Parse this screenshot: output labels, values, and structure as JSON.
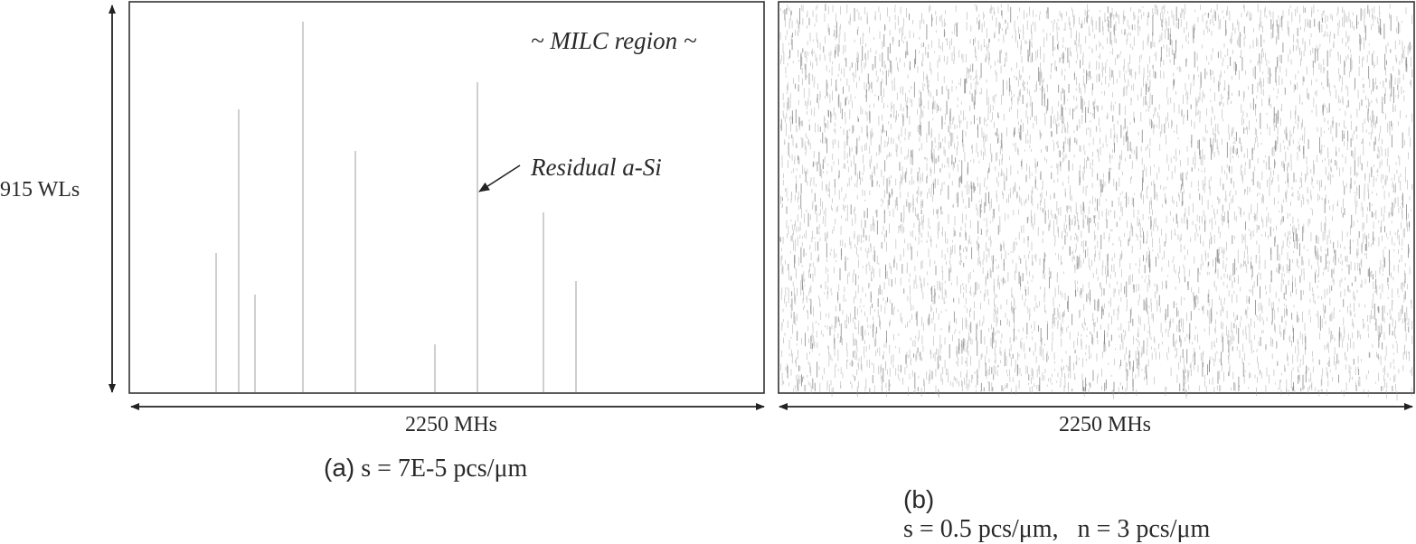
{
  "panel_a": {
    "vertical_dimension": "915 WLs",
    "horizontal_dimension": "2250 MHs",
    "region_label": "~ MILC region ~",
    "annotation": "Residual a-Si",
    "caption_tag": "(a)",
    "caption_text": "s = 7E-5 pcs/μm",
    "colors": {
      "frame": "#333333",
      "residual_line": "#cfcfcf"
    }
  },
  "panel_b": {
    "horizontal_dimension": "2250 MHs",
    "caption_tag": "(b)",
    "caption_text": "s = 0.5 pcs/μm,   n = 3 pcs/μm",
    "colors": {
      "frame": "#333333",
      "texture": "#8a8a8a"
    }
  }
}
